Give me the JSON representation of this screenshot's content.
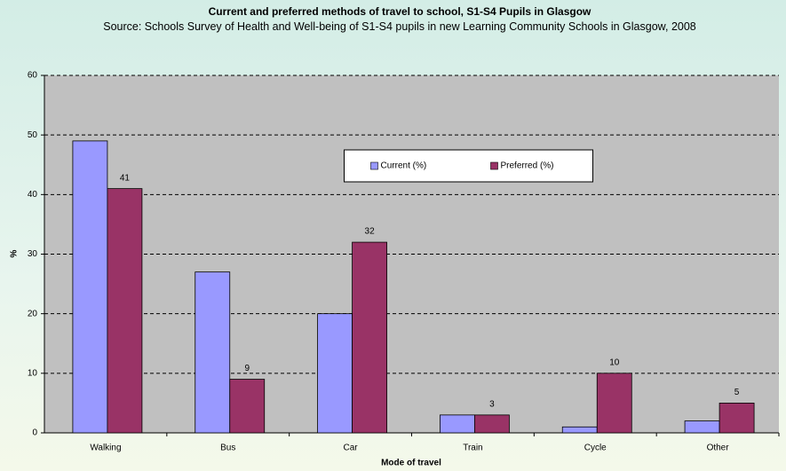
{
  "chart_data": {
    "type": "bar",
    "title": "Current and preferred methods of travel to school, S1-S4 Pupils in Glasgow",
    "subtitle": "Source: Schools Survey of Health and Well-being of S1-S4 pupils in new Learning Community Schools in Glasgow, 2008",
    "x_label": "Mode of travel",
    "y_label": "%",
    "categories": [
      "Walking",
      "Bus",
      "Car",
      "Train",
      "Cycle",
      "Other"
    ],
    "series": [
      {
        "name": "Current (%)",
        "color": "#9999ff",
        "values": [
          49,
          27,
          20,
          3,
          1,
          2
        ],
        "show_labels": false
      },
      {
        "name": "Preferred (%)",
        "color": "#993366",
        "values": [
          41,
          9,
          32,
          3,
          10,
          5
        ],
        "show_labels": true
      }
    ],
    "ylim": [
      0,
      60
    ],
    "yticks": [
      0,
      10,
      20,
      30,
      40,
      50,
      60
    ],
    "grid": true,
    "legend": "upper center"
  }
}
